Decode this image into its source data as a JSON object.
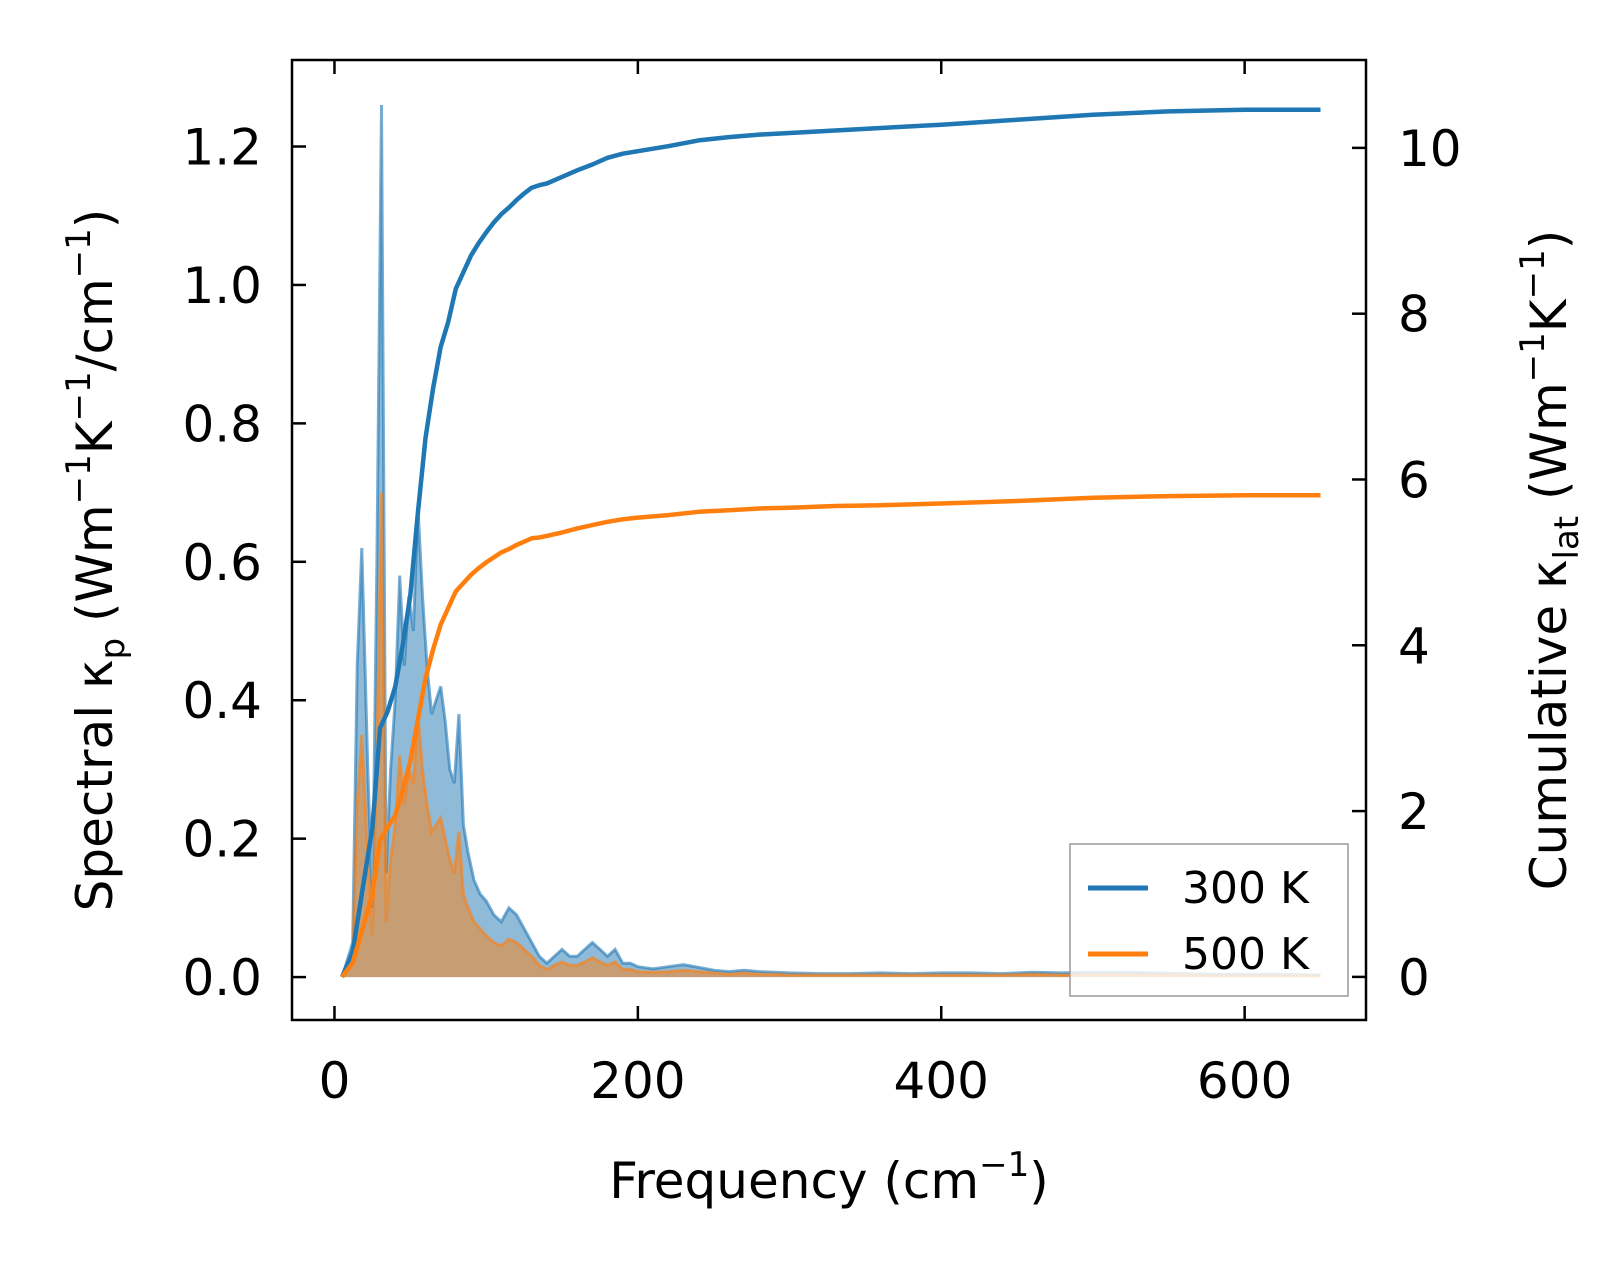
{
  "chart_data": {
    "type": "line",
    "xlabel": {
      "base": "Frequency (cm",
      "sup": "−1",
      "tail": ")"
    },
    "ylabel_left": {
      "base": "Spectral κ",
      "sub": "p",
      "mid": " (Wm",
      "sup1": "−1",
      "mid2": "K",
      "sup2": "−1",
      "tail": "/cm",
      "sup3": "−1",
      "end": ")"
    },
    "ylabel_right": {
      "base": "Cumulative κ",
      "sub": "lat",
      "mid": " (Wm",
      "sup1": "−1",
      "mid2": "K",
      "sup2": "−1",
      "end": ")"
    },
    "xlim": [
      -28,
      680
    ],
    "ylim_left": [
      -0.062,
      1.325
    ],
    "ylim_right": [
      -0.52,
      11.06
    ],
    "xticks": [
      0,
      200,
      400,
      600
    ],
    "xtick_labels": [
      "0",
      "200",
      "400",
      "600"
    ],
    "yticks_left": [
      0.0,
      0.2,
      0.4,
      0.6,
      0.8,
      1.0,
      1.2
    ],
    "ytick_labels_left": [
      "0.0",
      "0.2",
      "0.4",
      "0.6",
      "0.8",
      "1.0",
      "1.2"
    ],
    "yticks_right": [
      0,
      2,
      4,
      6,
      8,
      10
    ],
    "ytick_labels_right": [
      "0",
      "2",
      "4",
      "6",
      "8",
      "10"
    ],
    "legend": {
      "position": "lower right",
      "entries": [
        "300 K",
        "500 K"
      ]
    },
    "colors": {
      "300 K": "#1f77b4",
      "500 K": "#ff7f0e"
    },
    "spectral_series": [
      {
        "name": "300 K",
        "axis": "left",
        "x": [
          5,
          12,
          15,
          18,
          22,
          25,
          28,
          31,
          34,
          37,
          40,
          43,
          46,
          49,
          52,
          55,
          58,
          61,
          64,
          67,
          70,
          73,
          76,
          79,
          82,
          85,
          88,
          92,
          96,
          100,
          105,
          110,
          115,
          120,
          125,
          130,
          135,
          140,
          145,
          150,
          155,
          160,
          165,
          170,
          175,
          180,
          185,
          190,
          195,
          200,
          210,
          220,
          230,
          240,
          250,
          260,
          270,
          280,
          290,
          300,
          320,
          340,
          360,
          380,
          400,
          420,
          440,
          460,
          480,
          500,
          520,
          540,
          560,
          580,
          600,
          620,
          650
        ],
        "y": [
          0.0,
          0.05,
          0.45,
          0.62,
          0.3,
          0.1,
          0.6,
          1.26,
          0.15,
          0.3,
          0.4,
          0.58,
          0.45,
          0.55,
          0.5,
          0.68,
          0.55,
          0.45,
          0.38,
          0.4,
          0.42,
          0.37,
          0.3,
          0.28,
          0.38,
          0.22,
          0.18,
          0.14,
          0.12,
          0.11,
          0.09,
          0.08,
          0.1,
          0.09,
          0.07,
          0.05,
          0.03,
          0.02,
          0.03,
          0.04,
          0.03,
          0.03,
          0.04,
          0.05,
          0.04,
          0.03,
          0.04,
          0.02,
          0.02,
          0.015,
          0.012,
          0.015,
          0.018,
          0.014,
          0.01,
          0.008,
          0.01,
          0.008,
          0.007,
          0.006,
          0.005,
          0.005,
          0.006,
          0.005,
          0.006,
          0.006,
          0.005,
          0.007,
          0.006,
          0.007,
          0.007,
          0.006,
          0.005,
          0.004,
          0.004,
          0.004,
          0.003
        ]
      },
      {
        "name": "500 K",
        "axis": "left",
        "x": [
          5,
          12,
          15,
          18,
          22,
          25,
          28,
          31,
          34,
          37,
          40,
          43,
          46,
          49,
          52,
          55,
          58,
          61,
          64,
          67,
          70,
          73,
          76,
          79,
          82,
          85,
          88,
          92,
          96,
          100,
          105,
          110,
          115,
          120,
          125,
          130,
          135,
          140,
          145,
          150,
          155,
          160,
          165,
          170,
          175,
          180,
          185,
          190,
          195,
          200,
          210,
          220,
          230,
          240,
          250,
          260,
          270,
          280,
          290,
          300,
          320,
          340,
          360,
          380,
          400,
          420,
          440,
          460,
          480,
          500,
          520,
          540,
          560,
          580,
          600,
          620,
          650
        ],
        "y": [
          0.0,
          0.03,
          0.25,
          0.35,
          0.17,
          0.06,
          0.33,
          0.7,
          0.08,
          0.17,
          0.22,
          0.32,
          0.25,
          0.3,
          0.28,
          0.38,
          0.3,
          0.25,
          0.21,
          0.22,
          0.23,
          0.2,
          0.17,
          0.15,
          0.21,
          0.12,
          0.1,
          0.08,
          0.07,
          0.06,
          0.05,
          0.045,
          0.055,
          0.05,
          0.04,
          0.03,
          0.017,
          0.011,
          0.017,
          0.022,
          0.017,
          0.017,
          0.022,
          0.028,
          0.022,
          0.017,
          0.022,
          0.011,
          0.011,
          0.008,
          0.007,
          0.008,
          0.01,
          0.008,
          0.006,
          0.004,
          0.006,
          0.004,
          0.004,
          0.003,
          0.003,
          0.003,
          0.003,
          0.003,
          0.003,
          0.003,
          0.003,
          0.004,
          0.003,
          0.004,
          0.004,
          0.003,
          0.003,
          0.002,
          0.002,
          0.002,
          0.002
        ]
      }
    ],
    "cumulative_series": [
      {
        "name": "300 K",
        "axis": "right",
        "x": [
          5,
          12,
          18,
          25,
          30,
          35,
          40,
          45,
          50,
          55,
          60,
          65,
          70,
          75,
          80,
          85,
          90,
          95,
          100,
          105,
          110,
          115,
          120,
          125,
          130,
          135,
          140,
          150,
          160,
          170,
          180,
          190,
          200,
          220,
          240,
          260,
          280,
          300,
          330,
          360,
          400,
          450,
          500,
          550,
          600,
          650
        ],
        "y": [
          0.0,
          0.3,
          1.0,
          1.8,
          3.0,
          3.2,
          3.5,
          4.0,
          4.6,
          5.6,
          6.5,
          7.1,
          7.6,
          7.9,
          8.3,
          8.5,
          8.7,
          8.85,
          8.98,
          9.1,
          9.2,
          9.28,
          9.37,
          9.45,
          9.52,
          9.55,
          9.57,
          9.65,
          9.73,
          9.8,
          9.88,
          9.93,
          9.96,
          10.02,
          10.09,
          10.13,
          10.16,
          10.18,
          10.21,
          10.24,
          10.28,
          10.34,
          10.4,
          10.44,
          10.46,
          10.46
        ]
      },
      {
        "name": "500 K",
        "axis": "right",
        "x": [
          5,
          12,
          18,
          25,
          30,
          35,
          40,
          45,
          50,
          55,
          60,
          65,
          70,
          75,
          80,
          85,
          90,
          95,
          100,
          105,
          110,
          115,
          120,
          125,
          130,
          135,
          140,
          150,
          160,
          170,
          180,
          190,
          200,
          220,
          240,
          260,
          280,
          300,
          330,
          360,
          400,
          450,
          500,
          550,
          600,
          650
        ],
        "y": [
          0.0,
          0.17,
          0.55,
          1.0,
          1.65,
          1.8,
          1.95,
          2.25,
          2.6,
          3.1,
          3.6,
          3.95,
          4.25,
          4.45,
          4.65,
          4.75,
          4.85,
          4.93,
          5.0,
          5.06,
          5.12,
          5.16,
          5.21,
          5.25,
          5.29,
          5.3,
          5.32,
          5.36,
          5.41,
          5.45,
          5.49,
          5.52,
          5.54,
          5.57,
          5.61,
          5.63,
          5.65,
          5.66,
          5.68,
          5.69,
          5.71,
          5.74,
          5.78,
          5.8,
          5.81,
          5.81
        ]
      }
    ]
  }
}
